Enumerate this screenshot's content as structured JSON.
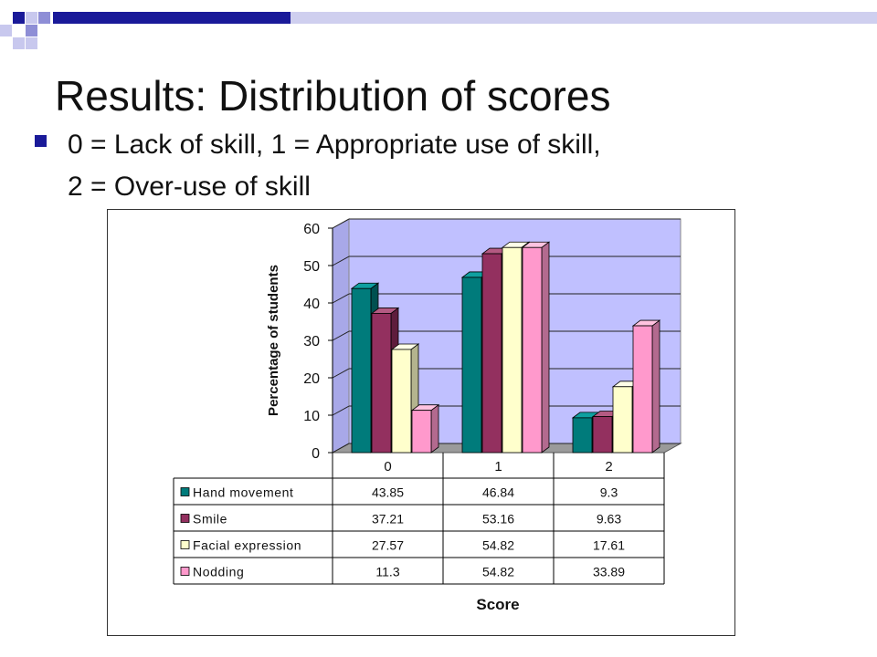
{
  "slide": {
    "title": "Results: Distribution of scores",
    "bullet_line1": "0 = Lack of skill, 1 = Appropriate use of skill,",
    "bullet_line2": "2 = Over-use of skill"
  },
  "colors": {
    "deco_navy": "#1a1a99",
    "deco_blue": "#8e8ed6",
    "deco_light": "#c8c8ee",
    "plot_wall": "#c0c0ff",
    "bullet": "#1a1a99"
  },
  "chart_data": {
    "type": "bar",
    "style": "3d-clustered-column",
    "categories": [
      "0",
      "1",
      "2"
    ],
    "series": [
      {
        "name": "Hand movement",
        "values": [
          43.85,
          46.84,
          9.3
        ],
        "color": "#007b7b",
        "top": "#0fa0a0",
        "side": "#005050"
      },
      {
        "name": "Smile",
        "values": [
          37.21,
          53.16,
          9.63
        ],
        "color": "#93305f",
        "top": "#b45a82",
        "side": "#5e1d3c"
      },
      {
        "name": "Facial expression",
        "values": [
          27.57,
          54.82,
          17.61
        ],
        "color": "#ffffcc",
        "top": "#ffffe8",
        "side": "#b4b48e"
      },
      {
        "name": "Nodding",
        "values": [
          11.3,
          54.82,
          33.89
        ],
        "color": "#ff99cc",
        "top": "#ffc3e0",
        "side": "#b36a8f"
      }
    ],
    "ylabel": "Percentage of students",
    "xlabel": "Score",
    "ylim": [
      0,
      60
    ],
    "yticks": [
      0,
      10,
      20,
      30,
      40,
      50,
      60
    ],
    "grid": true,
    "legend": "data table below chart",
    "data_table": true
  }
}
